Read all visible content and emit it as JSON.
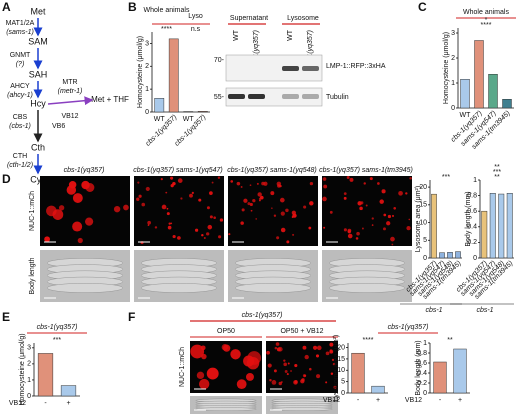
{
  "figure": {
    "panel_labels": [
      "A",
      "B",
      "C",
      "D",
      "E",
      "F"
    ]
  },
  "pathway": {
    "nodes": [
      {
        "label": "Met"
      },
      {
        "label": "SAM"
      },
      {
        "label": "SAH"
      },
      {
        "label": "Hcy"
      },
      {
        "label": "Cth"
      },
      {
        "label": "Cys"
      },
      {
        "label": "Met + THF"
      }
    ],
    "enzymes": [
      {
        "label": "MAT1/2A",
        "gene": "(sams-1)"
      },
      {
        "label": "GNMT",
        "gene": "(?)"
      },
      {
        "label": "AHCY",
        "gene": "(ahcy-1)"
      },
      {
        "label": "CBS",
        "gene": "(cbs-1)"
      },
      {
        "label": "CTH",
        "gene": "(cth-1/2)"
      },
      {
        "label": "MTR",
        "gene": "(metr-1)"
      }
    ],
    "cofactors": [
      "VB6",
      "VB12"
    ]
  },
  "blot": {
    "groups": [
      "Supernatant",
      "Lysosome"
    ],
    "lanes": [
      "WT",
      "cbs-1(yq357)",
      "WT",
      "cbs-1(yq357)"
    ],
    "markers": [
      "70-",
      "55-"
    ],
    "bands": [
      "LMP-1::RFP::3xHA",
      "Tubulin"
    ]
  },
  "micrographs_d": {
    "genotypes": [
      "cbs-1(yq357)",
      "cbs-1(yq357) sams-1(yq547)",
      "cbs-1(yq357) sams-1(yq548)",
      "cbs-1(yq357) sams-1(tm3945)"
    ],
    "rows": [
      "NUC-1::mCh",
      "Body length"
    ]
  },
  "micrographs_f": {
    "genotype": "cbs-1(yq357)",
    "conditions": [
      "OP50",
      "OP50 + VB12"
    ],
    "row": "NUC-1::mCh"
  },
  "chart_data": [
    {
      "type": "bar",
      "y_label": "Homocysteine (μmol/g)",
      "groups": [
        "Whole animals",
        "Lyso"
      ],
      "categories": [
        "WT",
        "cbs-1(yq357)",
        "WT",
        "cbs-1(yq357)"
      ],
      "values": [
        0.6,
        3.2,
        0.02,
        0.03
      ],
      "colors": [
        "#a9c9ea",
        "#e0917a",
        "#a9c9ea",
        "#e0917a"
      ],
      "ylim": [
        0,
        3.5
      ],
      "yticks": [
        0,
        1,
        2,
        3
      ],
      "significance": [
        "****",
        "n.s"
      ]
    },
    {
      "type": "bar",
      "title": "Whole animals",
      "y_label": "Homocysteine (μmol/g)",
      "categories": [
        "WT",
        "cbs-1(yq357)",
        "sams-1(yq547)",
        "sams-1(tm3945)"
      ],
      "values": [
        1.15,
        2.7,
        1.35,
        0.35
      ],
      "colors": [
        "#a9c9ea",
        "#e0917a",
        "#5aa88a",
        "#3f7f8f"
      ],
      "ylim": [
        0,
        3.2
      ],
      "yticks": [
        0,
        1,
        2,
        3
      ],
      "significance": [
        "****",
        "*"
      ]
    },
    {
      "type": "bar",
      "y_label": "Lysosome area (μm²)",
      "group_label": "cbs-1",
      "categories": [
        "cbs-1(yq357)",
        "sams-1(yq547)",
        "sams-1(yq548)",
        "sams-1(tm3945)"
      ],
      "values": [
        18,
        1.5,
        1.6,
        1.8
      ],
      "colors": [
        "#e8c27a",
        "#8fb3df",
        "#8fb3df",
        "#8fb3df"
      ],
      "ylim": [
        0,
        22
      ],
      "yticks": [
        0,
        5,
        10,
        15,
        20
      ],
      "significance": [
        "***"
      ]
    },
    {
      "type": "bar",
      "y_label": "Body length (mm)",
      "group_label": "cbs-1",
      "categories": [
        "cbs-1(yq357)",
        "sams-1(yq547)",
        "sams-1(yq548)",
        "sams-1(tm3945)"
      ],
      "values": [
        0.6,
        0.83,
        0.82,
        0.83
      ],
      "colors": [
        "#e8c27a",
        "#a9c9ea",
        "#a9c9ea",
        "#a9c9ea"
      ],
      "ylim": [
        0,
        1.0
      ],
      "yticks": [
        0,
        0.2,
        0.4,
        0.6,
        0.8,
        1.0
      ],
      "significance": [
        "**",
        "***",
        "**"
      ]
    },
    {
      "type": "bar",
      "title": "cbs-1(yq357)",
      "y_label": "Homocysteine (μmol/g)",
      "x_label": "VB12",
      "categories": [
        "-",
        "+"
      ],
      "values": [
        2.65,
        0.65
      ],
      "colors": [
        "#e0917a",
        "#a9c9ea"
      ],
      "ylim": [
        0,
        3.3
      ],
      "yticks": [
        0,
        1,
        2,
        3
      ],
      "significance": [
        "***"
      ]
    },
    {
      "type": "bar",
      "title": "cbs-1(yq357)",
      "y_label": "Lysosome area (μm²)",
      "x_label": "VB12",
      "categories": [
        "-",
        "+"
      ],
      "values": [
        17.5,
        3
      ],
      "colors": [
        "#e0917a",
        "#a9c9ea"
      ],
      "ylim": [
        0,
        22
      ],
      "yticks": [
        0,
        5,
        10,
        15,
        20
      ],
      "significance": [
        "****"
      ]
    },
    {
      "type": "bar",
      "y_label": "Body length (mm)",
      "x_label": "VB12",
      "categories": [
        "-",
        "+"
      ],
      "values": [
        0.62,
        0.88
      ],
      "colors": [
        "#e0917a",
        "#a9c9ea"
      ],
      "ylim": [
        0,
        1.0
      ],
      "yticks": [
        0,
        0.2,
        0.4,
        0.6,
        0.8,
        1.0
      ],
      "significance": [
        "**"
      ]
    }
  ]
}
